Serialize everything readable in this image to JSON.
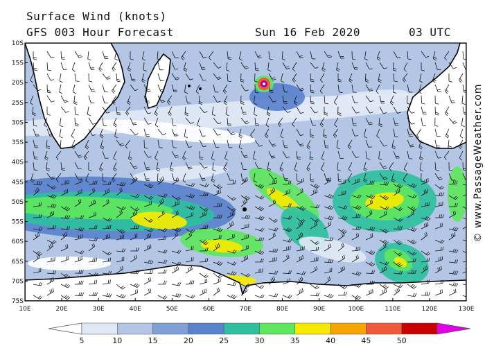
{
  "header": {
    "title": "Surface Wind (knots)",
    "forecast": "GFS 003 Hour Forecast",
    "date": "Sun 16 Feb 2020",
    "time": "03 UTC"
  },
  "credit": "© www.PassageWeather.com",
  "map": {
    "lat_labels": [
      "10S",
      "15S",
      "20S",
      "25S",
      "30S",
      "35S",
      "40S",
      "45S",
      "50S",
      "55S",
      "60S",
      "65S",
      "70S",
      "75S"
    ],
    "lon_labels": [
      "10E",
      "20E",
      "30E",
      "40E",
      "50E",
      "60E",
      "70E",
      "80E",
      "90E",
      "100E",
      "110E",
      "120E",
      "130E"
    ],
    "lat_range": [
      -10,
      -75
    ],
    "lon_range": [
      10,
      130
    ],
    "land_color": "#ffffff",
    "low_wind_color": "#e8eef8"
  },
  "colorbar": {
    "labels": [
      "5",
      "10",
      "15",
      "20",
      "25",
      "30",
      "35",
      "40",
      "45",
      "50"
    ],
    "colors": [
      "#ffffff",
      "#e1e8f5",
      "#b4c6e6",
      "#7f9fd6",
      "#5a82cc",
      "#2fbf9f",
      "#5ee65e",
      "#f5ea00",
      "#f5a500",
      "#ee5a3a",
      "#c80000",
      "#a000a0",
      "#e400e4"
    ]
  }
}
